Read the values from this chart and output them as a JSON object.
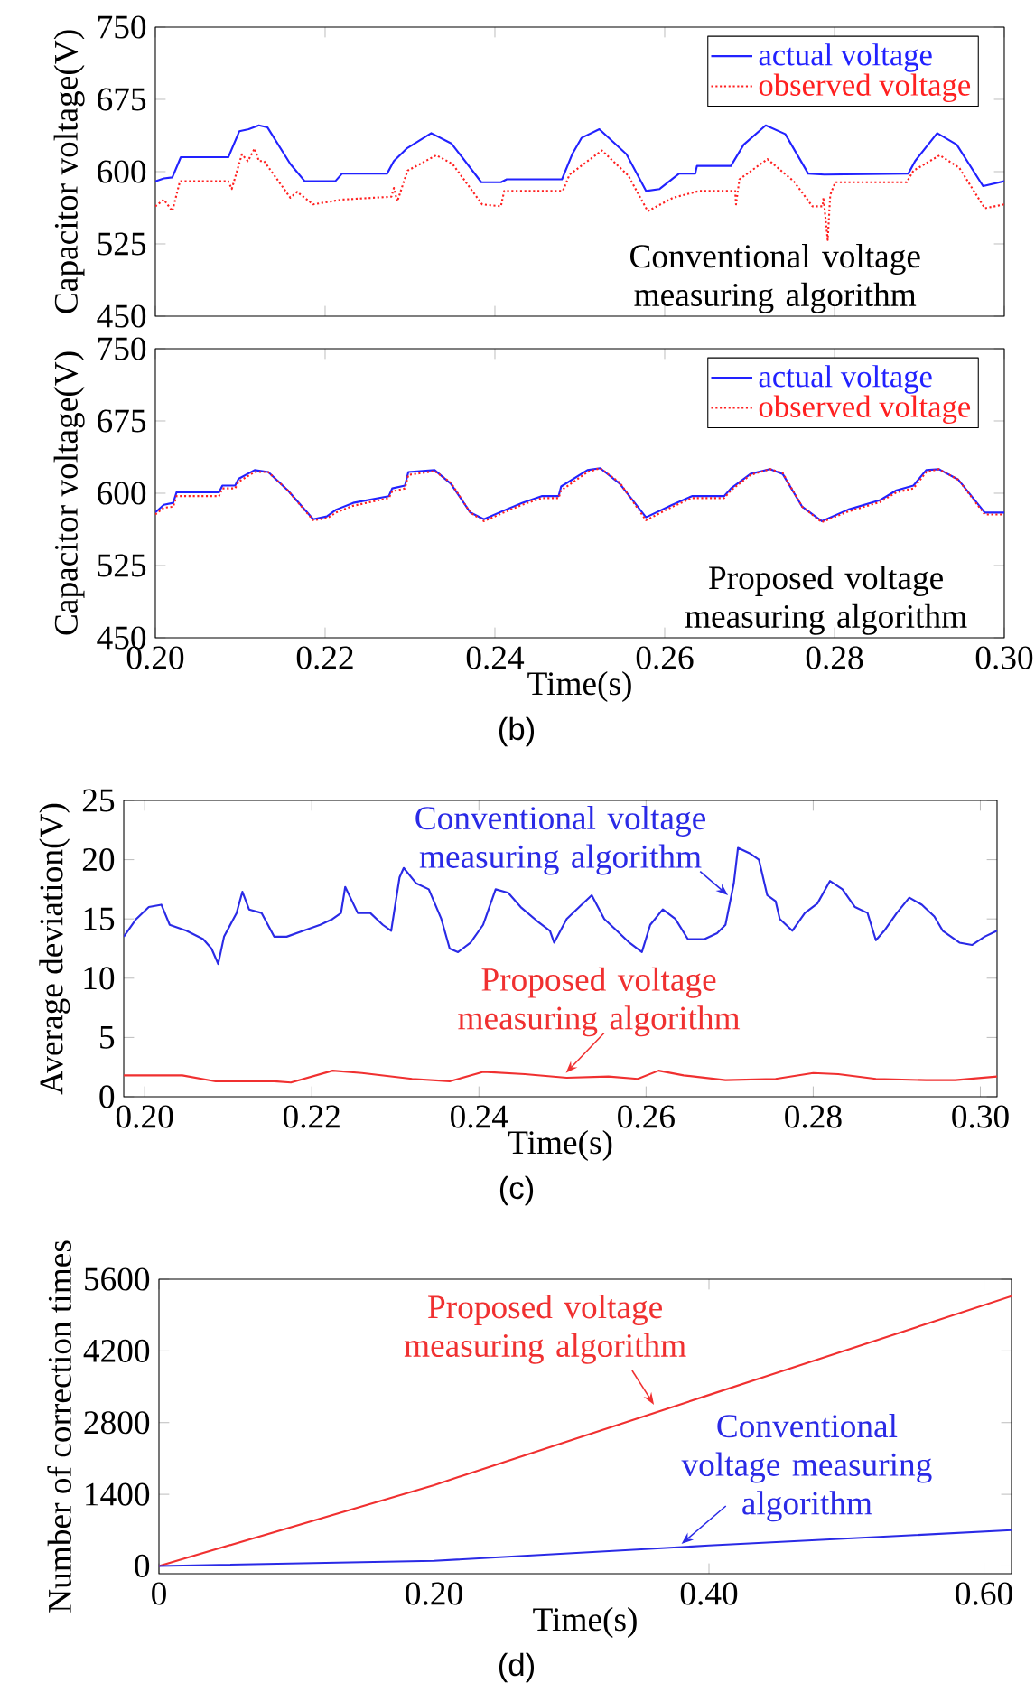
{
  "chart_data": [
    {
      "type": "line",
      "ylabel": "Capacitor voltage(V)",
      "xlim": [
        0.2,
        0.3
      ],
      "ylim": [
        450,
        750
      ],
      "xticks": [
        0.2,
        0.22,
        0.24,
        0.26,
        0.28,
        0.3
      ],
      "yticks": [
        450,
        525,
        600,
        675,
        750
      ],
      "tick_labels": "y",
      "legend": "top right",
      "annotations": [
        "Conventional voltage measuring algorithm"
      ],
      "series": [
        {
          "name": "actual voltage",
          "color": "#2222ff",
          "line_style": "solid",
          "x": [
            0.2,
            0.201,
            0.202,
            0.203,
            0.2086,
            0.2099,
            0.211,
            0.2122,
            0.2132,
            0.2159,
            0.2176,
            0.2212,
            0.222,
            0.2273,
            0.2281,
            0.2296,
            0.2325,
            0.2349,
            0.2384,
            0.2407,
            0.2414,
            0.2479,
            0.2491,
            0.2502,
            0.2523,
            0.2555,
            0.2578,
            0.2594,
            0.2617,
            0.2636,
            0.2638,
            0.2678,
            0.2693,
            0.2719,
            0.2742,
            0.2769,
            0.2788,
            0.2887,
            0.2895,
            0.2921,
            0.2944,
            0.2975,
            0.3
          ],
          "values": [
            590,
            593,
            594,
            615,
            615,
            642,
            644,
            648,
            646,
            608,
            590,
            590,
            598,
            598,
            611,
            624,
            640,
            629,
            589,
            589,
            592,
            592,
            618,
            635,
            644,
            618,
            580,
            582,
            598,
            598,
            606,
            606,
            628,
            648,
            639,
            598,
            597,
            598,
            611,
            640,
            628,
            585,
            590
          ]
        },
        {
          "name": "observed voltage",
          "color": "#ff2020",
          "line_style": "dotted",
          "x": [
            0.2,
            0.201,
            0.202,
            0.2029,
            0.2086,
            0.209,
            0.2102,
            0.2109,
            0.2117,
            0.2122,
            0.2128,
            0.2159,
            0.2167,
            0.2186,
            0.222,
            0.2278,
            0.2281,
            0.2285,
            0.2297,
            0.2331,
            0.235,
            0.2385,
            0.2407,
            0.2411,
            0.248,
            0.2488,
            0.2526,
            0.2557,
            0.258,
            0.261,
            0.2641,
            0.2683,
            0.2684,
            0.2688,
            0.2721,
            0.2752,
            0.2774,
            0.2786,
            0.2787,
            0.2792,
            0.2795,
            0.2801,
            0.2885,
            0.2893,
            0.2924,
            0.2947,
            0.2977,
            0.3
          ],
          "values": [
            564,
            571,
            559,
            590,
            590,
            582,
            618,
            611,
            624,
            611,
            611,
            573,
            579,
            566,
            571,
            574,
            583,
            569,
            601,
            617,
            608,
            566,
            564,
            580,
            580,
            597,
            622,
            596,
            559,
            573,
            580,
            580,
            566,
            592,
            613,
            590,
            564,
            564,
            573,
            529,
            576,
            589,
            589,
            601,
            617,
            604,
            562,
            566
          ]
        }
      ]
    },
    {
      "type": "line",
      "title": "(b)",
      "xlabel": "Time(s)",
      "ylabel": "Capacitor voltage(V)",
      "xlim": [
        0.2,
        0.3
      ],
      "ylim": [
        450,
        750
      ],
      "xticks": [
        {
          "value": 0.2,
          "label": "0.20"
        },
        {
          "value": 0.22,
          "label": "0.22"
        },
        {
          "value": 0.24,
          "label": "0.24"
        },
        {
          "value": 0.26,
          "label": "0.26"
        },
        {
          "value": 0.28,
          "label": "0.28"
        },
        {
          "value": 0.3,
          "label": "0.30"
        }
      ],
      "yticks": [
        450,
        525,
        600,
        675,
        750
      ],
      "legend": "top right",
      "annotations": [
        "Proposed voltage measuring algorithm"
      ],
      "x": [
        0.2,
        0.201,
        0.2021,
        0.2025,
        0.2075,
        0.2079,
        0.2094,
        0.2098,
        0.2117,
        0.2133,
        0.2156,
        0.2186,
        0.2202,
        0.2213,
        0.2233,
        0.2275,
        0.2279,
        0.2294,
        0.2298,
        0.2329,
        0.2348,
        0.2371,
        0.2387,
        0.2413,
        0.2432,
        0.2455,
        0.2475,
        0.2478,
        0.2509,
        0.2524,
        0.2547,
        0.2578,
        0.2609,
        0.2632,
        0.267,
        0.2678,
        0.2701,
        0.2724,
        0.2739,
        0.2762,
        0.2785,
        0.2816,
        0.2854,
        0.2873,
        0.2893,
        0.2908,
        0.2923,
        0.2946,
        0.2977,
        0.3
      ],
      "series": [
        {
          "name": "actual voltage",
          "color": "#2222ff",
          "line_style": "solid",
          "values": [
            580,
            588,
            590,
            601,
            601,
            608,
            608,
            615,
            624,
            622,
            603,
            573,
            576,
            583,
            590,
            597,
            605,
            608,
            622,
            624,
            610,
            580,
            573,
            583,
            590,
            597,
            597,
            607,
            624,
            626,
            610,
            575,
            588,
            597,
            597,
            605,
            620,
            625,
            620,
            586,
            571,
            583,
            593,
            603,
            608,
            624,
            625,
            614,
            580,
            580
          ]
        },
        {
          "name": "observed voltage",
          "color": "#ff2020",
          "line_style": "dotted",
          "values": [
            578,
            585,
            586,
            597,
            597,
            605,
            605,
            612,
            622,
            622,
            603,
            572,
            574,
            580,
            587,
            595,
            602,
            605,
            619,
            623,
            611,
            580,
            571,
            581,
            588,
            595,
            595,
            603,
            622,
            626,
            611,
            572,
            586,
            595,
            595,
            603,
            619,
            625,
            621,
            586,
            570,
            581,
            591,
            601,
            605,
            622,
            625,
            614,
            578,
            578
          ]
        }
      ]
    },
    {
      "type": "line",
      "title": "(c)",
      "xlabel": "Time(s)",
      "ylabel": "Average  deviation(V)",
      "xlim": [
        0.1975,
        0.302
      ],
      "ylim": [
        0,
        25
      ],
      "xticks": [
        {
          "value": 0.2,
          "label": "0.20"
        },
        {
          "value": 0.22,
          "label": "0.22"
        },
        {
          "value": 0.24,
          "label": "0.24"
        },
        {
          "value": 0.26,
          "label": "0.26"
        },
        {
          "value": 0.28,
          "label": "0.28"
        },
        {
          "value": 0.3,
          "label": "0.30"
        }
      ],
      "yticks": [
        0,
        5,
        10,
        15,
        20,
        25
      ],
      "annotations": [
        {
          "text": "Conventional voltage measuring algorithm",
          "x": 0.2698,
          "y": 17
        },
        {
          "text": "Proposed voltage measuring algorithm",
          "x": 0.2504,
          "y": 2
        }
      ],
      "series": [
        {
          "color": "#2a2ae6",
          "x": [
            0.1975,
            0.199,
            0.2005,
            0.202,
            0.203,
            0.205,
            0.207,
            0.208,
            0.2088,
            0.2095,
            0.211,
            0.2117,
            0.2125,
            0.214,
            0.2155,
            0.217,
            0.219,
            0.221,
            0.2225,
            0.2235,
            0.224,
            0.2255,
            0.227,
            0.2285,
            0.2295,
            0.2305,
            0.231,
            0.2325,
            0.234,
            0.2355,
            0.2365,
            0.2375,
            0.239,
            0.2405,
            0.242,
            0.2435,
            0.245,
            0.247,
            0.2485,
            0.249,
            0.2505,
            0.252,
            0.2535,
            0.255,
            0.2565,
            0.258,
            0.2595,
            0.2605,
            0.262,
            0.2635,
            0.265,
            0.267,
            0.2685,
            0.2695,
            0.2705,
            0.271,
            0.2725,
            0.2735,
            0.2745,
            0.2755,
            0.276,
            0.2775,
            0.279,
            0.2805,
            0.282,
            0.2835,
            0.285,
            0.2865,
            0.2875,
            0.2885,
            0.29,
            0.2915,
            0.293,
            0.2945,
            0.2955,
            0.2975,
            0.299,
            0.3005,
            0.302
          ],
          "values": [
            13.5,
            15,
            16,
            16.2,
            14.5,
            14,
            13.3,
            12.5,
            11.2,
            13.5,
            15.5,
            17.3,
            15.8,
            15.5,
            13.5,
            13.5,
            14,
            14.5,
            15,
            15.5,
            17.7,
            15.5,
            15.5,
            14.5,
            14,
            18.5,
            19.3,
            18,
            17.5,
            15,
            12.5,
            12.2,
            13,
            14.5,
            17.5,
            17.2,
            16,
            14.8,
            14,
            13,
            15,
            16,
            17,
            15,
            14,
            13,
            12.2,
            14.5,
            15.8,
            15,
            13.3,
            13.3,
            13.8,
            14.5,
            18,
            21,
            20.5,
            20,
            17,
            16.5,
            15,
            14,
            15.5,
            16.3,
            18.2,
            17.5,
            16,
            15.5,
            13.2,
            14,
            15.5,
            16.8,
            16.2,
            15.2,
            14,
            13,
            12.8,
            13.5,
            14
          ]
        },
        {
          "color": "#f03030",
          "x": [
            0.1975,
            0.2045,
            0.2085,
            0.2155,
            0.2175,
            0.2225,
            0.226,
            0.232,
            0.2365,
            0.2405,
            0.2455,
            0.2505,
            0.2555,
            0.259,
            0.2615,
            0.2645,
            0.2695,
            0.2755,
            0.28,
            0.283,
            0.2875,
            0.2935,
            0.297,
            0.302
          ],
          "values": [
            1.8,
            1.8,
            1.3,
            1.3,
            1.2,
            2.2,
            2.0,
            1.5,
            1.3,
            2.1,
            1.9,
            1.6,
            1.7,
            1.5,
            2.2,
            1.8,
            1.4,
            1.5,
            2.0,
            1.9,
            1.5,
            1.4,
            1.4,
            1.7
          ]
        }
      ]
    },
    {
      "type": "line",
      "title": "(d)",
      "xlabel": "Time(s)",
      "ylabel": "Number of correction times",
      "xlim": [
        0,
        0.62
      ],
      "ylim": [
        -150,
        5600
      ],
      "xticks": [
        0,
        {
          "value": 0.2,
          "label": "0.20"
        },
        {
          "value": 0.4,
          "label": "0.40"
        },
        {
          "value": 0.6,
          "label": "0.60"
        }
      ],
      "yticks": [
        0,
        1400,
        2800,
        4200,
        5600
      ],
      "annotations": [
        {
          "text": "Proposed voltage measuring algorithm",
          "x": 0.36,
          "y": 3150
        },
        {
          "text": "Conventional voltage measuring algorithm",
          "x": 0.38,
          "y": 430
        }
      ],
      "x": [
        0,
        0.2,
        0.4,
        0.62
      ],
      "series": [
        {
          "color": "#f03030",
          "values": [
            0,
            1580,
            3340,
            5270
          ]
        },
        {
          "color": "#2a2ae6",
          "values": [
            0,
            100,
            400,
            700
          ]
        }
      ]
    }
  ]
}
